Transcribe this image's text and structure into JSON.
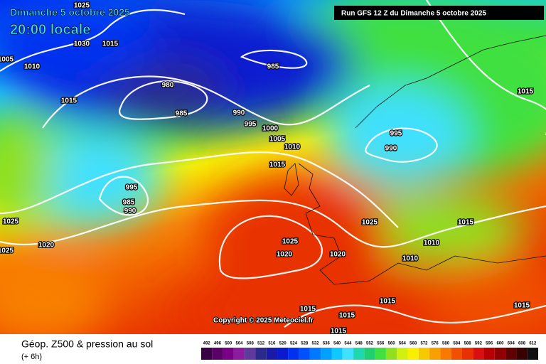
{
  "header": {
    "title": "Dimanche 5 octobre 2025",
    "subtitle": "20:00 locale",
    "run": "Run GFS 12 Z du Dimanche 5 octobre 2025"
  },
  "copyright": "Copyright © 2025 Meteociel.fr",
  "footer": {
    "title": "Géop. Z500 & pression au sol",
    "lead": "(+ 6h)"
  },
  "isobar_labels": [
    1025,
    1030,
    1015,
    1010,
    1005,
    1015,
    980,
    985,
    990,
    995,
    1000,
    1005,
    1010,
    1015,
    985,
    995,
    990,
    1015,
    995,
    985,
    990,
    1025,
    1020,
    1025,
    1025,
    1020,
    1020,
    1025,
    1015,
    1010,
    1010,
    1015,
    1015,
    1015,
    1015,
    1015
  ],
  "legend": {
    "values": [
      492,
      496,
      500,
      504,
      508,
      512,
      516,
      520,
      524,
      528,
      532,
      536,
      540,
      544,
      548,
      552,
      556,
      560,
      564,
      568,
      572,
      576,
      580,
      584,
      588,
      592,
      596,
      600,
      604,
      608,
      612
    ],
    "colors": [
      "#3a0046",
      "#5a0066",
      "#7a0086",
      "#8e1aa0",
      "#5e3a9e",
      "#2a2a8a",
      "#1a1aa8",
      "#0a1ad0",
      "#0030f0",
      "#0050ff",
      "#0078ff",
      "#00a0ff",
      "#10c8ff",
      "#40e0ff",
      "#20d8b0",
      "#20d070",
      "#40e040",
      "#90e020",
      "#d0f010",
      "#f8f000",
      "#f8c800",
      "#f8a000",
      "#f87800",
      "#f05000",
      "#e83000",
      "#d81010",
      "#b80000",
      "#900000",
      "#600000",
      "#380000",
      "#101010"
    ]
  }
}
